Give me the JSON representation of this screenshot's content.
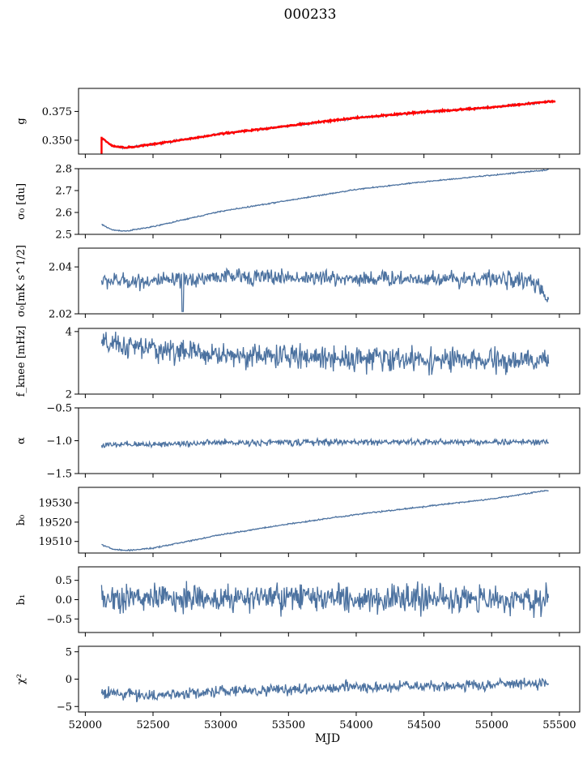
{
  "figure_title": "000233",
  "colors": {
    "series": "#4c72a0",
    "overlay": "#ff0000",
    "axes": "#000000"
  },
  "chart_data": [
    {
      "type": "line",
      "panel": "g",
      "ylabel": "g",
      "xlim": [
        51950,
        55650
      ],
      "ylim": [
        0.338,
        0.395
      ],
      "yticks": [
        0.35,
        0.375
      ],
      "ytick_labels": [
        "0.350",
        "0.375"
      ],
      "x_start": 52120,
      "x_end": 55420,
      "noise": 0.0007,
      "trend": [
        [
          52120,
          0.352
        ],
        [
          52200,
          0.345
        ],
        [
          52300,
          0.3435
        ],
        [
          52500,
          0.3465
        ],
        [
          53000,
          0.3555
        ],
        [
          53500,
          0.3625
        ],
        [
          54000,
          0.3695
        ],
        [
          54500,
          0.3745
        ],
        [
          55000,
          0.3785
        ],
        [
          55420,
          0.3835
        ]
      ],
      "overlay": {
        "name": "model",
        "x_start": 52120,
        "x_end": 55470,
        "noise": 0.0005,
        "spike_x": 52120,
        "spike_range": [
          0.337,
          0.353
        ]
      }
    },
    {
      "type": "line",
      "panel": "sigma0_du",
      "ylabel": "σ₀ [du]",
      "xlim": [
        51950,
        55650
      ],
      "ylim": [
        2.5,
        2.8
      ],
      "yticks": [
        2.5,
        2.6,
        2.7,
        2.8
      ],
      "ytick_labels": [
        "2.5",
        "2.6",
        "2.7",
        "2.8"
      ],
      "x_start": 52120,
      "x_end": 55420,
      "noise": 0.002,
      "trend": [
        [
          52120,
          2.545
        ],
        [
          52200,
          2.52
        ],
        [
          52300,
          2.515
        ],
        [
          52500,
          2.535
        ],
        [
          53000,
          2.605
        ],
        [
          53500,
          2.655
        ],
        [
          54000,
          2.705
        ],
        [
          54500,
          2.74
        ],
        [
          55000,
          2.77
        ],
        [
          55420,
          2.795
        ]
      ]
    },
    {
      "type": "line",
      "panel": "sigma0_mk",
      "ylabel": "σ₀[mK s^1/2]",
      "xlim": [
        51950,
        55650
      ],
      "ylim": [
        2.02,
        2.048
      ],
      "yticks": [
        2.02,
        2.04
      ],
      "ytick_labels": [
        "2.02",
        "2.04"
      ],
      "x_start": 52120,
      "x_end": 55420,
      "noise": 0.0025,
      "trend": [
        [
          52120,
          2.034
        ],
        [
          52700,
          2.034
        ],
        [
          53000,
          2.036
        ],
        [
          54000,
          2.035
        ],
        [
          55000,
          2.035
        ],
        [
          55300,
          2.034
        ],
        [
          55420,
          2.026
        ]
      ],
      "dips": [
        [
          52720,
          2.021
        ],
        [
          55400,
          2.026
        ]
      ]
    },
    {
      "type": "line",
      "panel": "f_knee",
      "ylabel": "f_knee [mHz]",
      "xlim": [
        51950,
        55650
      ],
      "ylim": [
        2.0,
        4.1
      ],
      "yticks": [
        2,
        4
      ],
      "ytick_labels": [
        "2",
        "4"
      ],
      "x_start": 52120,
      "x_end": 55420,
      "noise": 0.28,
      "trend": [
        [
          52120,
          3.6
        ],
        [
          52600,
          3.4
        ],
        [
          53000,
          3.25
        ],
        [
          54000,
          3.15
        ],
        [
          55000,
          3.05
        ],
        [
          55420,
          3.05
        ]
      ]
    },
    {
      "type": "line",
      "panel": "alpha",
      "ylabel": "α",
      "xlim": [
        51950,
        55650
      ],
      "ylim": [
        -1.5,
        -0.5
      ],
      "yticks": [
        -1.5,
        -1.0,
        -0.5
      ],
      "ytick_labels": [
        "−1.5",
        "−1.0",
        "−0.5"
      ],
      "x_start": 52120,
      "x_end": 55420,
      "noise": 0.035,
      "trend": [
        [
          52120,
          -1.07
        ],
        [
          53000,
          -1.03
        ],
        [
          54000,
          -1.02
        ],
        [
          55420,
          -1.02
        ]
      ]
    },
    {
      "type": "line",
      "panel": "b0",
      "ylabel": "b₀",
      "xlim": [
        51950,
        55650
      ],
      "ylim": [
        19504,
        19538
      ],
      "yticks": [
        19510,
        19520,
        19530
      ],
      "ytick_labels": [
        "19510",
        "19520",
        "19530"
      ],
      "x_start": 52120,
      "x_end": 55420,
      "noise": 0.25,
      "trend": [
        [
          52120,
          19508.5
        ],
        [
          52200,
          19506
        ],
        [
          52300,
          19505.3
        ],
        [
          52500,
          19506.5
        ],
        [
          53000,
          19513.5
        ],
        [
          53500,
          19519
        ],
        [
          54000,
          19524
        ],
        [
          54500,
          19528
        ],
        [
          55000,
          19532
        ],
        [
          55420,
          19536.5
        ]
      ]
    },
    {
      "type": "line",
      "panel": "b1",
      "ylabel": "b₁",
      "xlim": [
        51950,
        55650
      ],
      "ylim": [
        -0.85,
        0.85
      ],
      "yticks": [
        -0.5,
        0.0,
        0.5
      ],
      "ytick_labels": [
        "−0.5",
        "0.0",
        "0.5"
      ],
      "x_start": 52120,
      "x_end": 55420,
      "noise": 0.27,
      "trend": [
        [
          52120,
          0.05
        ],
        [
          55420,
          0.0
        ]
      ]
    },
    {
      "type": "line",
      "panel": "chi2",
      "ylabel": "χ²",
      "xlim": [
        51950,
        55650
      ],
      "ylim": [
        -6,
        6
      ],
      "yticks": [
        -5,
        0,
        5
      ],
      "ytick_labels": [
        "−5",
        "0",
        "5"
      ],
      "x_start": 52120,
      "x_end": 55420,
      "noise": 0.75,
      "trend": [
        [
          52120,
          -2.5
        ],
        [
          52500,
          -3.0
        ],
        [
          53000,
          -2.2
        ],
        [
          54000,
          -1.5
        ],
        [
          55000,
          -1.1
        ],
        [
          55420,
          -0.7
        ]
      ],
      "xlabel": "MJD",
      "xticks": [
        52000,
        52500,
        53000,
        53500,
        54000,
        54500,
        55000,
        55500
      ],
      "xtick_labels": [
        "52000",
        "52500",
        "53000",
        "53500",
        "54000",
        "54500",
        "55000",
        "55500"
      ]
    }
  ]
}
